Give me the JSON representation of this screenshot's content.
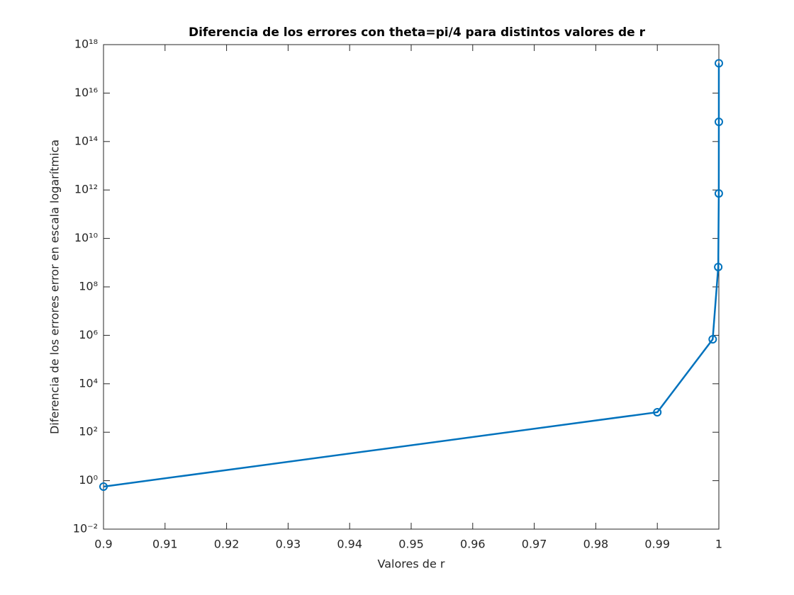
{
  "chart_data": {
    "type": "line",
    "title": "Diferencia de los errores con theta=pi/4 para distintos valores de r",
    "xlabel": "Valores de r",
    "ylabel": "Diferencia de los errores error en escala logarítmica",
    "x": [
      0.9,
      0.99,
      0.999,
      0.9999,
      0.99999,
      0.999999,
      0.9999999
    ],
    "series": [
      {
        "color": "#0072bd",
        "values": [
          0.57,
          670,
          686000,
          660000000,
          720000000000,
          650000000000000,
          170000000000000000
        ]
      }
    ],
    "xlim": [
      0.9,
      1
    ],
    "xticks": [
      0.9,
      0.91,
      0.92,
      0.93,
      0.94,
      0.95,
      0.96,
      0.97,
      0.98,
      0.99,
      1
    ],
    "ylim": [
      0.01,
      1e+18
    ],
    "yscale": "log",
    "yticks": [
      {
        "value": 0.01,
        "label": "10⁻²"
      },
      {
        "value": 1,
        "label": "10⁰"
      },
      {
        "value": 100,
        "label": "10²"
      },
      {
        "value": 10000,
        "label": "10⁴"
      },
      {
        "value": 1000000,
        "label": "10⁶"
      },
      {
        "value": 100000000,
        "label": "10⁸"
      },
      {
        "value": 10000000000,
        "label": "10¹⁰"
      },
      {
        "value": 1000000000000,
        "label": "10¹²"
      },
      {
        "value": 100000000000000,
        "label": "10¹⁴"
      },
      {
        "value": 10000000000000000,
        "label": "10¹⁶"
      },
      {
        "value": 1e+18,
        "label": "10¹⁸"
      }
    ],
    "grid": false
  }
}
